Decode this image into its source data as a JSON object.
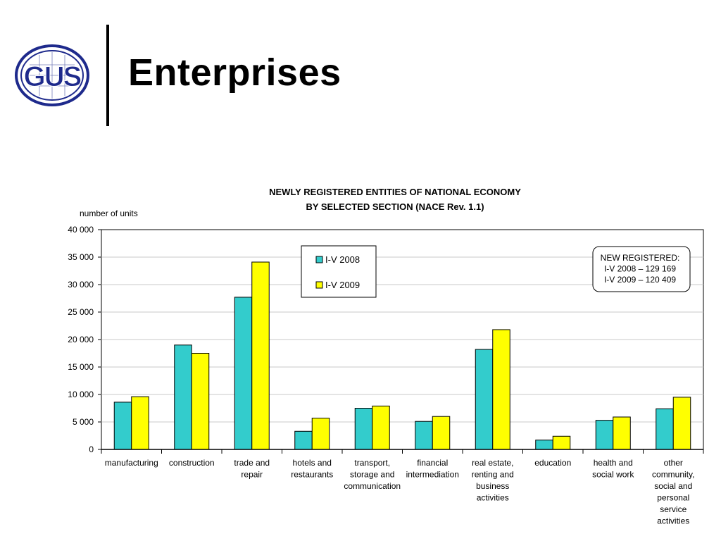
{
  "slide": {
    "title": "Enterprises",
    "logo_text": "GUS"
  },
  "chart_data": {
    "type": "bar",
    "title": [
      "NEWLY REGISTERED ENTITIES OF NATIONAL ECONOMY",
      "BY SELECTED SECTION (NACE Rev. 1.1)"
    ],
    "ylabel": "number of units",
    "xlabel": "",
    "ylim": [
      0,
      40000
    ],
    "ytick_step": 5000,
    "ytick_labels": [
      "0",
      "5 000",
      "10 000",
      "15 000",
      "20 000",
      "25 000",
      "30 000",
      "35 000",
      "40 000"
    ],
    "grid": true,
    "legend_position": "top-center",
    "categories": [
      [
        "manufacturing"
      ],
      [
        "construction"
      ],
      [
        "trade and",
        "repair"
      ],
      [
        "hotels and",
        "restaurants"
      ],
      [
        "transport,",
        "storage and",
        "communication"
      ],
      [
        "financial",
        "intermediation"
      ],
      [
        "real estate,",
        "renting and",
        "business",
        "activities"
      ],
      [
        "education"
      ],
      [
        "health and",
        "social work"
      ],
      [
        "other",
        "community,",
        "social and",
        "personal",
        "service",
        "activities"
      ]
    ],
    "series": [
      {
        "name": "I-V 2008",
        "color": "#33CCCC",
        "values": [
          8600,
          19000,
          27700,
          3300,
          7500,
          5100,
          18200,
          1700,
          5300,
          7400
        ]
      },
      {
        "name": "I-V 2009",
        "color": "#FFFF00",
        "values": [
          9600,
          17500,
          34100,
          5700,
          7900,
          6000,
          21800,
          2400,
          5900,
          9500
        ]
      }
    ],
    "annotation": [
      "NEW REGISTERED:",
      "I-V 2008 – 129 169",
      "I-V 2009 – 120 409"
    ]
  }
}
